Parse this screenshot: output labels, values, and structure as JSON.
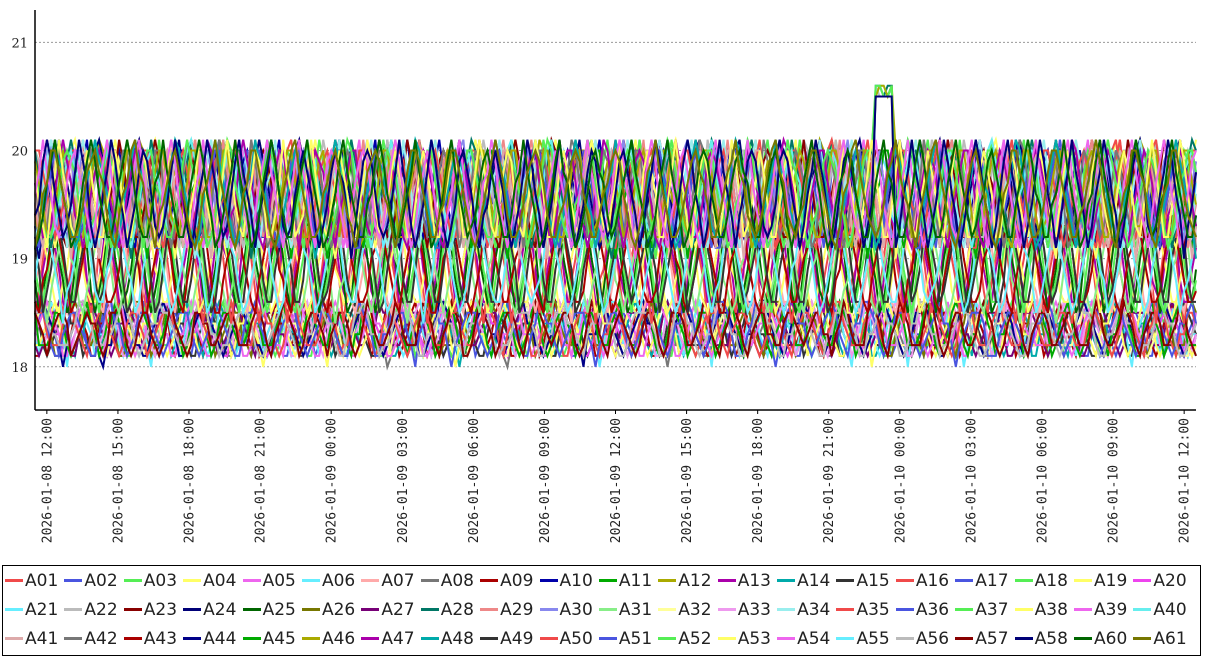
{
  "chart_data": {
    "type": "line",
    "title": "",
    "xlabel": "",
    "ylabel": "",
    "ylim": [
      17.6,
      21.3
    ],
    "y_ticks": [
      "18",
      "19",
      "20",
      "21"
    ],
    "x_range": [
      "2026-01-08 11:30",
      "2026-01-10 12:30"
    ],
    "x_ticks": [
      "2026-01-08 12:00",
      "2026-01-08 15:00",
      "2026-01-08 18:00",
      "2026-01-08 21:00",
      "2026-01-09 00:00",
      "2026-01-09 03:00",
      "2026-01-09 06:00",
      "2026-01-09 09:00",
      "2026-01-09 12:00",
      "2026-01-09 15:00",
      "2026-01-09 18:00",
      "2026-01-09 21:00",
      "2026-01-10 00:00",
      "2026-01-10 03:00",
      "2026-01-10 06:00",
      "2026-01-10 09:00",
      "2026-01-10 12:00"
    ],
    "grid": "horizontal dotted",
    "legend_position": "bottom",
    "series_profiles": {
      "upper": {
        "range": [
          18.9,
          20.1
        ],
        "note": "oscillating bands peaking near 20"
      },
      "middle": {
        "range": [
          18.3,
          19.4
        ],
        "note": "red bands centred near 18.8"
      },
      "lower": {
        "range": [
          18.0,
          18.6
        ],
        "note": "blue and green bands near 18.2"
      },
      "spike": {
        "x": "2026-01-09 23:20",
        "y": 20.6
      }
    },
    "series": [
      {
        "name": "A01",
        "color": "#f04a4a"
      },
      {
        "name": "A02",
        "color": "#4a55e0"
      },
      {
        "name": "A03",
        "color": "#55ee55"
      },
      {
        "name": "A04",
        "color": "#ffff66"
      },
      {
        "name": "A05",
        "color": "#ee66ee"
      },
      {
        "name": "A06",
        "color": "#66eeff"
      },
      {
        "name": "A07",
        "color": "#ffaaaa"
      },
      {
        "name": "A08",
        "color": "#777777"
      },
      {
        "name": "A09",
        "color": "#aa0000"
      },
      {
        "name": "A10",
        "color": "#0000aa"
      },
      {
        "name": "A11",
        "color": "#00aa00"
      },
      {
        "name": "A12",
        "color": "#aaaa00"
      },
      {
        "name": "A13",
        "color": "#aa00aa"
      },
      {
        "name": "A14",
        "color": "#00aaaa"
      },
      {
        "name": "A15",
        "color": "#333333"
      },
      {
        "name": "A16",
        "color": "#f04a4a"
      },
      {
        "name": "A17",
        "color": "#4a55e0"
      },
      {
        "name": "A18",
        "color": "#55ee55"
      },
      {
        "name": "A19",
        "color": "#ffff66"
      },
      {
        "name": "A20",
        "color": "#ee44ee"
      },
      {
        "name": "A21",
        "color": "#66eeff"
      },
      {
        "name": "A22",
        "color": "#bbbbbb"
      },
      {
        "name": "A23",
        "color": "#880000"
      },
      {
        "name": "A24",
        "color": "#000077"
      },
      {
        "name": "A25",
        "color": "#006600"
      },
      {
        "name": "A26",
        "color": "#777700"
      },
      {
        "name": "A27",
        "color": "#770077"
      },
      {
        "name": "A28",
        "color": "#007766"
      },
      {
        "name": "A29",
        "color": "#ee8888"
      },
      {
        "name": "A30",
        "color": "#8888ee"
      },
      {
        "name": "A31",
        "color": "#88ee88"
      },
      {
        "name": "A32",
        "color": "#ffff99"
      },
      {
        "name": "A33",
        "color": "#ee99ee"
      },
      {
        "name": "A34",
        "color": "#99eeee"
      },
      {
        "name": "A35",
        "color": "#f04a4a"
      },
      {
        "name": "A36",
        "color": "#4a55e0"
      },
      {
        "name": "A37",
        "color": "#55ee55"
      },
      {
        "name": "A38",
        "color": "#ffff66"
      },
      {
        "name": "A39",
        "color": "#ee66ee"
      },
      {
        "name": "A40",
        "color": "#66eeee"
      },
      {
        "name": "A41",
        "color": "#ddaaaa"
      },
      {
        "name": "A42",
        "color": "#777777"
      },
      {
        "name": "A43",
        "color": "#aa0000"
      },
      {
        "name": "A44",
        "color": "#000088"
      },
      {
        "name": "A45",
        "color": "#00aa00"
      },
      {
        "name": "A46",
        "color": "#aaaa00"
      },
      {
        "name": "A47",
        "color": "#aa00aa"
      },
      {
        "name": "A48",
        "color": "#00aaaa"
      },
      {
        "name": "A49",
        "color": "#333333"
      },
      {
        "name": "A50",
        "color": "#f04a4a"
      },
      {
        "name": "A51",
        "color": "#4a55e0"
      },
      {
        "name": "A52",
        "color": "#55ee55"
      },
      {
        "name": "A53",
        "color": "#ffff66"
      },
      {
        "name": "A54",
        "color": "#ee66ee"
      },
      {
        "name": "A55",
        "color": "#66eeff"
      },
      {
        "name": "A56",
        "color": "#bbbbbb"
      },
      {
        "name": "A57",
        "color": "#880000"
      },
      {
        "name": "A58",
        "color": "#000077"
      },
      {
        "name": "A60",
        "color": "#006600"
      },
      {
        "name": "A61",
        "color": "#777700"
      }
    ]
  }
}
